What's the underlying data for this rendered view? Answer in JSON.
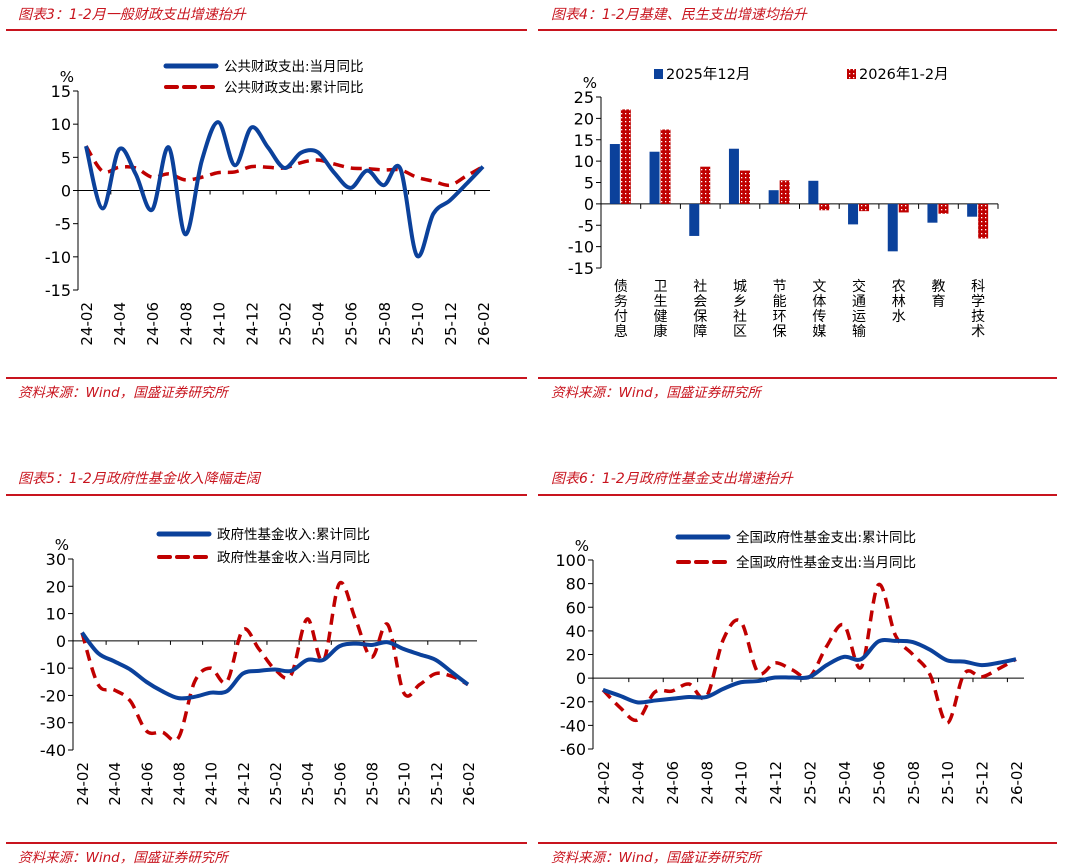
{
  "panels": [
    {
      "source": "资料来源：Wind，国盛证券研究所",
      "unit": "%"
    },
    {
      "source": "资料来源：Wind，国盛证券研究所",
      "unit": "%"
    },
    {
      "source": "资料来源：Wind，国盛证券研究所",
      "unit": "%"
    },
    {
      "source": "资料来源：Wind，国盛证券研究所",
      "unit": "%"
    }
  ],
  "colors": {
    "blue": "#0b419b",
    "red": "#c00000",
    "accent": "#c8141e"
  },
  "chart_data": [
    {
      "type": "line",
      "title": "图表3：1-2月一般财政支出增速抬升",
      "x": [
        "24-02",
        "24-03",
        "24-04",
        "24-05",
        "24-06",
        "24-07",
        "24-08",
        "24-09",
        "24-10",
        "24-11",
        "24-12",
        "25-01",
        "25-02",
        "25-03",
        "25-04",
        "25-05",
        "25-06",
        "25-07",
        "25-08",
        "25-09",
        "25-10",
        "25-11",
        "25-12",
        "26-01",
        "26-02"
      ],
      "xticks": [
        "24-02",
        "24-04",
        "24-06",
        "24-08",
        "24-10",
        "24-12",
        "25-02",
        "25-04",
        "25-06",
        "25-08",
        "25-10",
        "25-12",
        "26-02"
      ],
      "ylabel": "%",
      "ylim": [
        -15,
        15
      ],
      "yticks": [
        15,
        10,
        5,
        0,
        -5,
        -10,
        -15
      ],
      "legend": "top-center",
      "series": [
        {
          "name": "公共财政支出:当月同比",
          "style": "solid",
          "values": [
            6.7,
            -2.7,
            6.2,
            2.5,
            -2.9,
            6.5,
            -6.6,
            4.5,
            10.3,
            3.8,
            9.5,
            6.5,
            3.4,
            5.7,
            5.8,
            2.7,
            0.4,
            3.0,
            0.8,
            3.3,
            -9.8,
            -3.5,
            -1.5,
            1.0,
            3.6
          ]
        },
        {
          "name": "公共财政支出:累计同比",
          "style": "dashed",
          "values": [
            6.7,
            2.9,
            3.5,
            3.4,
            2.0,
            2.5,
            1.6,
            2.0,
            2.7,
            2.8,
            3.6,
            3.5,
            3.4,
            4.2,
            4.6,
            4.0,
            3.4,
            3.3,
            3.1,
            3.1,
            2.0,
            1.4,
            0.8,
            2.2,
            3.6
          ]
        }
      ]
    },
    {
      "type": "bar",
      "title": "图表4：1-2月基建、民生支出增速均抬升",
      "categories": [
        "债务付息",
        "卫生健康",
        "社会保障",
        "城乡社区",
        "节能环保",
        "文体传媒",
        "交通运输",
        "农林水",
        "教育",
        "科学技术"
      ],
      "ylabel": "%",
      "ylim": [
        -15,
        25
      ],
      "yticks": [
        25,
        20,
        15,
        10,
        5,
        0,
        -5,
        -10,
        -15
      ],
      "legend": "top",
      "series": [
        {
          "name": "2025年12月",
          "values": [
            14.0,
            12.2,
            -7.5,
            12.9,
            3.2,
            5.4,
            -4.8,
            -11.1,
            -4.4,
            -3.0
          ]
        },
        {
          "name": "2026年1-2月",
          "values": [
            22.1,
            17.4,
            8.7,
            7.8,
            5.5,
            -1.5,
            -1.7,
            -2.0,
            -2.3,
            -8.1
          ]
        }
      ]
    },
    {
      "type": "line",
      "title": "图表5：1-2月政府性基金收入降幅走阔",
      "x": [
        "24-02",
        "24-03",
        "24-04",
        "24-05",
        "24-06",
        "24-07",
        "24-08",
        "24-09",
        "24-10",
        "24-11",
        "24-12",
        "25-01",
        "25-02",
        "25-03",
        "25-04",
        "25-05",
        "25-06",
        "25-07",
        "25-08",
        "25-09",
        "25-10",
        "25-11",
        "25-12",
        "26-01",
        "26-02"
      ],
      "xticks": [
        "24-02",
        "24-04",
        "24-06",
        "24-08",
        "24-10",
        "24-12",
        "25-02",
        "25-04",
        "25-06",
        "25-08",
        "25-10",
        "25-12",
        "26-02"
      ],
      "ylabel": "%",
      "ylim": [
        -40,
        30
      ],
      "yticks": [
        30,
        20,
        10,
        0,
        -10,
        -20,
        -30,
        -40
      ],
      "legend": "top-center",
      "series": [
        {
          "name": "政府性基金收入:累计同比",
          "style": "solid",
          "values": [
            3,
            -4.5,
            -7.5,
            -10.5,
            -15,
            -18.5,
            -21,
            -20.5,
            -19,
            -18.5,
            -12,
            -11,
            -10.5,
            -11,
            -7,
            -7,
            -2,
            -1,
            -1.5,
            -0.5,
            -3,
            -5,
            -7,
            -11.5,
            -16
          ]
        },
        {
          "name": "政府性基金收入:当月同比",
          "style": "dashed",
          "values": [
            3,
            -16,
            -18,
            -22,
            -33,
            -33.5,
            -35.5,
            -15,
            -10,
            -15,
            4,
            -3,
            -10.5,
            -12.5,
            8,
            -7.5,
            21,
            8,
            -6,
            6,
            -19,
            -16,
            -12,
            -13,
            -16
          ]
        }
      ]
    },
    {
      "type": "line",
      "title": "图表6：1-2月政府性基金支出增速抬升",
      "x": [
        "24-02",
        "24-03",
        "24-04",
        "24-05",
        "24-06",
        "24-07",
        "24-08",
        "24-09",
        "24-10",
        "24-11",
        "24-12",
        "25-01",
        "25-02",
        "25-03",
        "25-04",
        "25-05",
        "25-06",
        "25-07",
        "25-08",
        "25-09",
        "25-10",
        "25-11",
        "25-12",
        "26-01",
        "26-02"
      ],
      "xticks": [
        "24-02",
        "24-04",
        "24-06",
        "24-08",
        "24-10",
        "24-12",
        "25-02",
        "25-04",
        "25-06",
        "25-08",
        "25-10",
        "25-12",
        "26-02"
      ],
      "ylabel": "%",
      "ylim": [
        -60,
        100
      ],
      "yticks": [
        100,
        80,
        60,
        40,
        20,
        0,
        -20,
        -40,
        -60
      ],
      "legend": "top-center",
      "series": [
        {
          "name": "全国政府性基金支出:累计同比",
          "style": "solid",
          "values": [
            -10,
            -15,
            -20.5,
            -19,
            -17.5,
            -16,
            -16,
            -9,
            -3.5,
            -2.5,
            0.5,
            0.5,
            1,
            11,
            18,
            16,
            31,
            31.5,
            30.5,
            24,
            15,
            14,
            11,
            13,
            16
          ]
        },
        {
          "name": "全国政府性基金支出:当月同比",
          "style": "dashed",
          "values": [
            -10,
            -25,
            -35.5,
            -12,
            -11,
            -5,
            -16,
            33,
            48,
            5,
            13,
            7,
            1,
            27,
            45,
            9,
            79,
            36,
            20,
            3,
            -38,
            4,
            1,
            8,
            16
          ]
        }
      ]
    }
  ]
}
